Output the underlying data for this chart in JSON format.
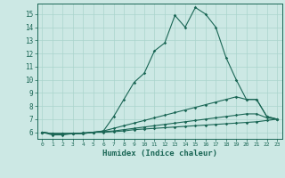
{
  "xlabel": "Humidex (Indice chaleur)",
  "background_color": "#cce8e4",
  "grid_color": "#aad4cc",
  "line_color": "#1a6655",
  "xlim": [
    -0.5,
    23.5
  ],
  "ylim": [
    5.5,
    15.8
  ],
  "xticks": [
    0,
    1,
    2,
    3,
    4,
    5,
    6,
    7,
    8,
    9,
    10,
    11,
    12,
    13,
    14,
    15,
    16,
    17,
    18,
    19,
    20,
    21,
    22,
    23
  ],
  "yticks": [
    6,
    7,
    8,
    9,
    10,
    11,
    12,
    13,
    14,
    15
  ],
  "series": [
    {
      "x": [
        0,
        1,
        2,
        3,
        4,
        5,
        6,
        7,
        8,
        9,
        10,
        11,
        12,
        13,
        14,
        15,
        16,
        17,
        18,
        19,
        20,
        21,
        22,
        23
      ],
      "y": [
        6.0,
        5.8,
        5.8,
        5.9,
        5.9,
        6.0,
        6.1,
        7.2,
        8.5,
        9.8,
        10.5,
        12.2,
        12.8,
        14.9,
        14.0,
        15.5,
        15.0,
        14.0,
        11.7,
        10.0,
        8.5,
        8.5,
        7.2,
        7.0
      ]
    },
    {
      "x": [
        0,
        1,
        2,
        3,
        4,
        5,
        6,
        7,
        8,
        9,
        10,
        11,
        12,
        13,
        14,
        15,
        16,
        17,
        18,
        19,
        20,
        21,
        22,
        23
      ],
      "y": [
        6.0,
        5.9,
        5.9,
        5.9,
        5.9,
        6.0,
        6.1,
        6.3,
        6.5,
        6.7,
        6.9,
        7.1,
        7.3,
        7.5,
        7.7,
        7.9,
        8.1,
        8.3,
        8.5,
        8.7,
        8.5,
        8.5,
        7.2,
        7.0
      ]
    },
    {
      "x": [
        0,
        1,
        2,
        3,
        4,
        5,
        6,
        7,
        8,
        9,
        10,
        11,
        12,
        13,
        14,
        15,
        16,
        17,
        18,
        19,
        20,
        21,
        22,
        23
      ],
      "y": [
        6.0,
        5.9,
        5.9,
        5.9,
        5.95,
        6.0,
        6.05,
        6.1,
        6.2,
        6.3,
        6.4,
        6.5,
        6.6,
        6.7,
        6.8,
        6.9,
        7.0,
        7.1,
        7.2,
        7.3,
        7.4,
        7.4,
        7.1,
        7.0
      ]
    },
    {
      "x": [
        0,
        1,
        2,
        3,
        4,
        5,
        6,
        7,
        8,
        9,
        10,
        11,
        12,
        13,
        14,
        15,
        16,
        17,
        18,
        19,
        20,
        21,
        22,
        23
      ],
      "y": [
        6.0,
        5.9,
        5.9,
        5.9,
        5.95,
        6.0,
        6.0,
        6.05,
        6.1,
        6.2,
        6.25,
        6.3,
        6.35,
        6.4,
        6.45,
        6.5,
        6.55,
        6.6,
        6.65,
        6.7,
        6.75,
        6.8,
        6.9,
        7.0
      ]
    }
  ]
}
